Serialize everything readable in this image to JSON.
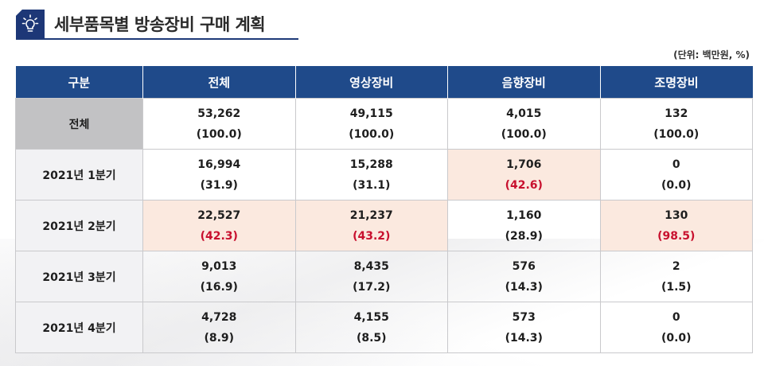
{
  "header": {
    "title": "세부품목별 방송장비 구매 계획",
    "icon": "lightbulb-icon",
    "unit_note": "(단위: 백만원, %)"
  },
  "colors": {
    "header_bg": "#1f4a8a",
    "highlight_bg": "#fbe9df",
    "highlight_text": "#c8102e",
    "total_row_bg": "#c2c2c4"
  },
  "table": {
    "columns": [
      "구분",
      "전체",
      "영상장비",
      "음향장비",
      "조명장비"
    ],
    "rows": [
      {
        "label": "전체",
        "cells": [
          {
            "value": "53,262",
            "pct": "(100.0)",
            "highlight": false
          },
          {
            "value": "49,115",
            "pct": "(100.0)",
            "highlight": false
          },
          {
            "value": "4,015",
            "pct": "(100.0)",
            "highlight": false
          },
          {
            "value": "132",
            "pct": "(100.0)",
            "highlight": false
          }
        ]
      },
      {
        "label": "2021년 1분기",
        "cells": [
          {
            "value": "16,994",
            "pct": "(31.9)",
            "highlight": false
          },
          {
            "value": "15,288",
            "pct": "(31.1)",
            "highlight": false
          },
          {
            "value": "1,706",
            "pct": "(42.6)",
            "highlight": true
          },
          {
            "value": "0",
            "pct": "(0.0)",
            "highlight": false
          }
        ]
      },
      {
        "label": "2021년 2분기",
        "cells": [
          {
            "value": "22,527",
            "pct": "(42.3)",
            "highlight": true
          },
          {
            "value": "21,237",
            "pct": "(43.2)",
            "highlight": true
          },
          {
            "value": "1,160",
            "pct": "(28.9)",
            "highlight": false
          },
          {
            "value": "130",
            "pct": "(98.5)",
            "highlight": true
          }
        ]
      },
      {
        "label": "2021년 3분기",
        "cells": [
          {
            "value": "9,013",
            "pct": "(16.9)",
            "highlight": false
          },
          {
            "value": "8,435",
            "pct": "(17.2)",
            "highlight": false
          },
          {
            "value": "576",
            "pct": "(14.3)",
            "highlight": false
          },
          {
            "value": "2",
            "pct": "(1.5)",
            "highlight": false
          }
        ]
      },
      {
        "label": "2021년 4분기",
        "cells": [
          {
            "value": "4,728",
            "pct": "(8.9)",
            "highlight": false
          },
          {
            "value": "4,155",
            "pct": "(8.5)",
            "highlight": false
          },
          {
            "value": "573",
            "pct": "(14.3)",
            "highlight": false
          },
          {
            "value": "0",
            "pct": "(0.0)",
            "highlight": false
          }
        ]
      }
    ]
  }
}
